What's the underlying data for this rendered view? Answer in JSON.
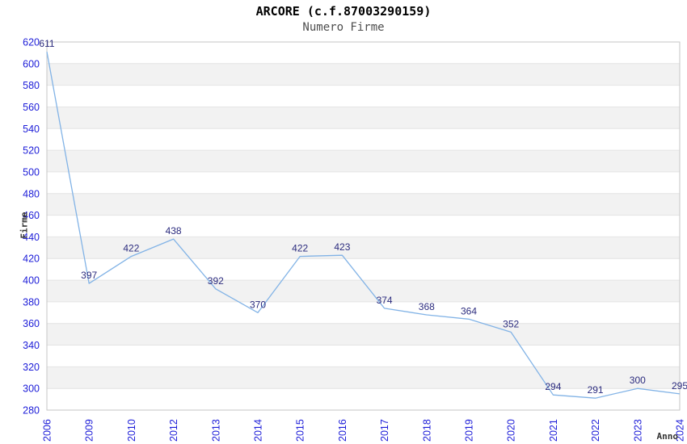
{
  "chart_data": {
    "type": "line",
    "title": "ARCORE (c.f.87003290159)",
    "subtitle": "Numero Firme",
    "xlabel": "Anno",
    "ylabel": "Firme",
    "categories": [
      "2006",
      "2009",
      "2010",
      "2012",
      "2013",
      "2014",
      "2015",
      "2016",
      "2017",
      "2018",
      "2019",
      "2020",
      "2021",
      "2022",
      "2023",
      "2024"
    ],
    "values": [
      611,
      397,
      422,
      438,
      392,
      370,
      422,
      423,
      374,
      368,
      364,
      352,
      294,
      291,
      300,
      295
    ],
    "ylim": [
      280,
      620
    ],
    "ytick_step": 20,
    "grid": "horizontal-gridlines-with-alternating-bands",
    "legend": "none",
    "markers": "none",
    "x_tick_rotation": -90,
    "colors": {
      "line": "#82b3e6",
      "tick_label": "#1c1cd8",
      "data_label": "#2b2b7e",
      "band": "#f2f2f2",
      "band_alt": "#ffffff",
      "gridline": "#e4e4e4",
      "border": "#c6c6c6",
      "title": "#000000",
      "subtitle": "#4d4d4d",
      "axis_title": "#333333",
      "background": "#ffffff"
    }
  }
}
